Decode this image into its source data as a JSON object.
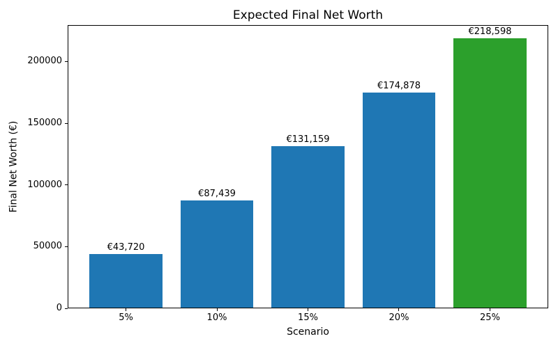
{
  "chart_data": {
    "type": "bar",
    "title": "Expected Final Net Worth",
    "xlabel": "Scenario",
    "ylabel": "Final Net Worth (€)",
    "categories": [
      "5%",
      "10%",
      "15%",
      "20%",
      "25%"
    ],
    "values": [
      43720,
      87439,
      131159,
      174878,
      218598
    ],
    "bar_labels": [
      "€43,720",
      "€87,439",
      "€131,159",
      "€174,878",
      "€218,598"
    ],
    "bar_colors": [
      "#1f77b4",
      "#1f77b4",
      "#1f77b4",
      "#1f77b4",
      "#2ca02c"
    ],
    "default_bar_color": "#1f77b4",
    "highlight_color": "#2ca02c",
    "axis_color": "#000000",
    "background_color": "#ffffff",
    "ylim": [
      0,
      229528
    ],
    "yticks": [
      0,
      50000,
      100000,
      150000,
      200000
    ],
    "ytick_labels": [
      "0",
      "50000",
      "100000",
      "150000",
      "200000"
    ],
    "grid": false,
    "legend_position": "none"
  }
}
